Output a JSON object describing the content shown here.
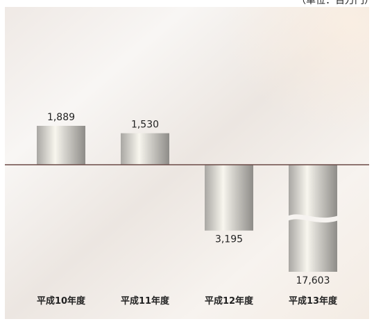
{
  "unit_note": "（単位：百万円）",
  "colors": {
    "panel_light": "#f7f4f1",
    "panel_warm": "#ece6e1",
    "panel_peach": "#fbf0e6",
    "bar_dark": "#a9a7a3",
    "bar_light": "#f8f6ee",
    "baseline": "#6b4a46",
    "text": "#222222"
  },
  "chart_data": {
    "type": "bar",
    "categories": [
      "平成10年度",
      "平成11年度",
      "平成12年度",
      "平成13年度"
    ],
    "values": [
      1889,
      1530,
      -3195,
      -17603
    ],
    "value_labels": [
      "1,889",
      "1,530",
      "3,195",
      "17,603"
    ],
    "broken_bars": [
      3
    ],
    "title": "",
    "xlabel": "",
    "ylabel": "",
    "grid": false,
    "legend": "none"
  }
}
